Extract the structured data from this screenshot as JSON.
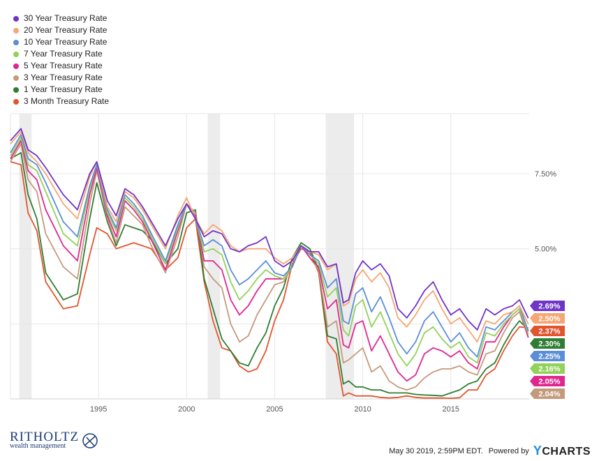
{
  "chart_data": {
    "type": "line",
    "title": "",
    "xlabel": "",
    "ylabel": "",
    "x_ticks": [
      "1995",
      "2000",
      "2005",
      "2010",
      "2015"
    ],
    "y_ticks": [
      "5.00%",
      "7.50%"
    ],
    "xlim": [
      1990.0,
      2019.45
    ],
    "ylim": [
      0.0,
      9.5
    ],
    "recession_bands": [
      [
        1990.5,
        1991.2
      ],
      [
        2001.2,
        2001.9
      ],
      [
        2007.9,
        2009.5
      ]
    ],
    "legend_position": "top-left",
    "series": [
      {
        "name": "30 Year Treasury Rate",
        "color": "#6f34c8",
        "last_label": "2.69%",
        "x": [
          1990,
          1990.6,
          1991,
          1991.5,
          1992,
          1993,
          1993.8,
          1994.5,
          1994.9,
          1995.5,
          1996,
          1996.5,
          1997,
          1997.5,
          1998,
          1998.8,
          1999.5,
          2000,
          2000.5,
          2001,
          2001.5,
          2002,
          2002.5,
          2003,
          2003.5,
          2004,
          2004.5,
          2005,
          2005.5,
          2006,
          2006.5,
          2007,
          2007.5,
          2008,
          2008.5,
          2008.9,
          2009.2,
          2009.6,
          2010,
          2010.5,
          2011,
          2011.5,
          2012,
          2012.5,
          2013,
          2013.5,
          2014,
          2014.5,
          2015,
          2015.5,
          2016,
          2016.5,
          2017,
          2017.5,
          2018,
          2018.5,
          2018.9,
          2019.4
        ],
        "y": [
          8.6,
          9.0,
          8.3,
          8.1,
          7.7,
          6.8,
          6.3,
          7.5,
          7.9,
          6.6,
          6.1,
          7.0,
          6.8,
          6.4,
          5.9,
          5.1,
          6.0,
          6.5,
          6.0,
          5.4,
          5.6,
          5.5,
          5.0,
          4.9,
          5.1,
          5.2,
          5.4,
          4.6,
          4.4,
          4.6,
          5.1,
          4.9,
          4.9,
          4.4,
          4.5,
          3.2,
          3.3,
          4.2,
          4.6,
          4.3,
          4.5,
          4.1,
          3.0,
          2.7,
          3.1,
          3.6,
          3.9,
          3.3,
          2.8,
          3.0,
          2.6,
          2.3,
          3.0,
          2.8,
          3.0,
          3.1,
          3.3,
          2.69
        ]
      },
      {
        "name": "20 Year Treasury Rate",
        "color": "#f5a672",
        "last_label": "2.50%",
        "x": [
          1990,
          1990.6,
          1991,
          1991.5,
          1992,
          1993,
          1993.8,
          1994.5,
          1994.9,
          1995.5,
          1996,
          1996.5,
          1997,
          1997.5,
          1998,
          1998.8,
          1999.5,
          2000,
          2000.5,
          2001,
          2001.5,
          2002,
          2002.5,
          2003,
          2003.5,
          2004,
          2004.5,
          2005,
          2005.5,
          2006,
          2006.5,
          2007,
          2007.5,
          2008,
          2008.5,
          2008.9,
          2009.2,
          2009.6,
          2010,
          2010.5,
          2011,
          2011.5,
          2012,
          2012.5,
          2013,
          2013.5,
          2014,
          2014.5,
          2015,
          2015.5,
          2016,
          2016.5,
          2017,
          2017.5,
          2018,
          2018.5,
          2018.9,
          2019.4
        ],
        "y": [
          8.5,
          8.9,
          8.2,
          7.9,
          7.5,
          6.5,
          6.0,
          7.4,
          7.9,
          6.4,
          5.9,
          6.9,
          6.7,
          6.3,
          5.8,
          5.0,
          6.1,
          6.7,
          6.0,
          5.5,
          5.8,
          5.6,
          5.1,
          4.9,
          5.0,
          5.0,
          5.0,
          4.7,
          4.5,
          4.7,
          5.1,
          4.9,
          4.8,
          4.3,
          4.5,
          3.1,
          3.2,
          4.0,
          4.3,
          3.9,
          4.2,
          3.7,
          2.7,
          2.4,
          2.8,
          3.3,
          3.6,
          3.0,
          2.5,
          2.7,
          2.3,
          1.9,
          2.6,
          2.5,
          2.8,
          2.9,
          3.1,
          2.5
        ]
      },
      {
        "name": "10 Year Treasury Rate",
        "color": "#5b8ed6",
        "last_label": "2.25%",
        "x": [
          1990,
          1990.6,
          1991,
          1991.5,
          1992,
          1993,
          1993.8,
          1994.5,
          1994.9,
          1995.5,
          1996,
          1996.5,
          1997,
          1997.5,
          1998,
          1998.8,
          1999.5,
          2000,
          2000.5,
          2001,
          2001.5,
          2002,
          2002.5,
          2003,
          2003.5,
          2004,
          2004.5,
          2005,
          2005.5,
          2006,
          2006.5,
          2007,
          2007.5,
          2008,
          2008.5,
          2008.9,
          2009.2,
          2009.6,
          2010,
          2010.5,
          2011,
          2011.5,
          2012,
          2012.5,
          2013,
          2013.5,
          2014,
          2014.5,
          2015,
          2015.5,
          2016,
          2016.5,
          2017,
          2017.5,
          2018,
          2018.5,
          2018.9,
          2019.4
        ],
        "y": [
          8.2,
          8.8,
          8.0,
          7.8,
          7.2,
          5.9,
          5.4,
          7.1,
          7.8,
          6.3,
          5.7,
          6.8,
          6.5,
          6.1,
          5.5,
          4.6,
          5.8,
          6.5,
          6.0,
          5.1,
          5.3,
          5.1,
          4.3,
          3.8,
          4.0,
          4.3,
          4.6,
          4.2,
          4.1,
          4.4,
          5.1,
          4.8,
          4.6,
          3.7,
          4.0,
          2.6,
          2.5,
          3.5,
          3.7,
          2.9,
          3.4,
          2.7,
          1.9,
          1.5,
          1.9,
          2.6,
          2.9,
          2.4,
          1.9,
          2.2,
          1.7,
          1.4,
          2.4,
          2.3,
          2.6,
          2.9,
          3.1,
          2.25
        ]
      },
      {
        "name": "7 Year Treasury Rate",
        "color": "#92d15a",
        "last_label": "2.16%",
        "x": [
          1990,
          1990.6,
          1991,
          1991.5,
          1992,
          1993,
          1993.8,
          1994.5,
          1994.9,
          1995.5,
          1996,
          1996.5,
          1997,
          1997.5,
          1998,
          1998.8,
          1999.5,
          2000,
          2000.5,
          2001,
          2001.5,
          2002,
          2002.5,
          2003,
          2003.5,
          2004,
          2004.5,
          2005,
          2005.5,
          2006,
          2006.5,
          2007,
          2007.5,
          2008,
          2008.5,
          2008.9,
          2009.2,
          2009.6,
          2010,
          2010.5,
          2011,
          2011.5,
          2012,
          2012.5,
          2013,
          2013.5,
          2014,
          2014.5,
          2015,
          2015.5,
          2016,
          2016.5,
          2017,
          2017.5,
          2018,
          2018.5,
          2018.9,
          2019.4
        ],
        "y": [
          8.1,
          8.7,
          7.8,
          7.6,
          6.9,
          5.5,
          5.1,
          7.0,
          7.8,
          6.2,
          5.6,
          6.7,
          6.4,
          6.0,
          5.4,
          4.5,
          5.7,
          6.5,
          6.0,
          4.9,
          5.0,
          4.8,
          3.9,
          3.3,
          3.6,
          4.0,
          4.3,
          4.1,
          4.0,
          4.4,
          5.1,
          4.8,
          4.5,
          3.4,
          3.7,
          2.3,
          2.1,
          3.1,
          3.3,
          2.4,
          2.9,
          2.2,
          1.5,
          1.1,
          1.5,
          2.2,
          2.4,
          2.0,
          1.7,
          1.9,
          1.4,
          1.2,
          2.2,
          2.1,
          2.5,
          2.8,
          3.0,
          2.16
        ]
      },
      {
        "name": "5 Year Treasury Rate",
        "color": "#e0268f",
        "last_label": "2.05%",
        "x": [
          1990,
          1990.6,
          1991,
          1991.5,
          1992,
          1993,
          1993.8,
          1994.5,
          1994.9,
          1995.5,
          1996,
          1996.5,
          1997,
          1997.5,
          1998,
          1998.8,
          1999.5,
          2000,
          2000.5,
          2001,
          2001.5,
          2002,
          2002.5,
          2003,
          2003.5,
          2004,
          2004.5,
          2005,
          2005.5,
          2006,
          2006.5,
          2007,
          2007.5,
          2008,
          2008.5,
          2008.9,
          2009.2,
          2009.6,
          2010,
          2010.5,
          2011,
          2011.5,
          2012,
          2012.5,
          2013,
          2013.5,
          2014,
          2014.5,
          2015,
          2015.5,
          2016,
          2016.5,
          2017,
          2017.5,
          2018,
          2018.5,
          2018.9,
          2019.4
        ],
        "y": [
          8.0,
          8.6,
          7.6,
          7.3,
          6.3,
          5.1,
          4.6,
          6.8,
          7.7,
          6.1,
          5.4,
          6.6,
          6.3,
          5.9,
          5.3,
          4.3,
          5.6,
          6.5,
          6.1,
          4.6,
          4.6,
          4.3,
          3.3,
          2.8,
          3.1,
          3.6,
          4.0,
          4.0,
          4.0,
          4.4,
          5.1,
          4.7,
          4.4,
          3.0,
          3.3,
          1.8,
          1.7,
          2.5,
          2.6,
          1.6,
          2.1,
          1.5,
          0.9,
          0.6,
          0.8,
          1.5,
          1.7,
          1.6,
          1.4,
          1.6,
          1.2,
          1.0,
          1.9,
          1.9,
          2.4,
          2.8,
          3.0,
          2.05
        ]
      },
      {
        "name": "3 Year Treasury Rate",
        "color": "#c49a7c",
        "last_label": "2.04%",
        "x": [
          1990,
          1990.6,
          1991,
          1991.5,
          1992,
          1993,
          1993.8,
          1994.5,
          1994.9,
          1995.5,
          1996,
          1996.5,
          1997,
          1997.5,
          1998,
          1998.8,
          1999.5,
          2000,
          2000.5,
          2001,
          2001.5,
          2002,
          2002.5,
          2003,
          2003.5,
          2004,
          2004.5,
          2005,
          2005.5,
          2006,
          2006.5,
          2007,
          2007.5,
          2008,
          2008.5,
          2008.9,
          2009.2,
          2009.6,
          2010,
          2010.5,
          2011,
          2011.5,
          2012,
          2012.5,
          2013,
          2013.5,
          2014,
          2014.5,
          2015,
          2015.5,
          2016,
          2016.5,
          2017,
          2017.5,
          2018,
          2018.5,
          2018.9,
          2019.4
        ],
        "y": [
          7.9,
          8.5,
          7.3,
          6.9,
          5.5,
          4.4,
          4.0,
          6.5,
          7.6,
          6.0,
          5.2,
          6.4,
          6.1,
          5.8,
          5.1,
          4.2,
          5.4,
          6.5,
          6.2,
          4.4,
          4.0,
          3.7,
          2.5,
          1.9,
          2.1,
          2.8,
          3.3,
          3.8,
          3.9,
          4.4,
          5.1,
          4.7,
          4.3,
          2.4,
          2.6,
          1.2,
          1.3,
          1.5,
          1.7,
          0.9,
          1.1,
          0.6,
          0.4,
          0.3,
          0.4,
          0.7,
          0.9,
          1.0,
          1.0,
          1.1,
          0.9,
          0.8,
          1.5,
          1.6,
          2.2,
          2.7,
          2.9,
          2.04
        ]
      },
      {
        "name": "1 Year Treasury Rate",
        "color": "#2e7d32",
        "last_label": "2.30%",
        "x": [
          1990,
          1990.6,
          1991,
          1991.5,
          1992,
          1993,
          1993.8,
          1994.5,
          1994.9,
          1995.5,
          1996,
          1996.5,
          1997,
          1997.5,
          1998,
          1998.8,
          1999.5,
          2000,
          2000.5,
          2001,
          2001.5,
          2002,
          2002.5,
          2003,
          2003.5,
          2004,
          2004.5,
          2005,
          2005.5,
          2006,
          2006.5,
          2007,
          2007.5,
          2008,
          2008.5,
          2008.9,
          2009.2,
          2009.6,
          2010,
          2010.5,
          2011,
          2011.5,
          2012,
          2012.5,
          2013,
          2013.5,
          2014,
          2014.5,
          2015,
          2015.5,
          2016,
          2016.5,
          2017,
          2017.5,
          2018,
          2018.5,
          2018.9,
          2019.4
        ],
        "y": [
          8.0,
          8.2,
          6.8,
          6.0,
          4.2,
          3.3,
          3.5,
          6.0,
          7.2,
          5.9,
          5.1,
          5.8,
          5.7,
          5.6,
          5.3,
          4.5,
          5.0,
          6.2,
          6.3,
          4.0,
          3.0,
          2.0,
          1.6,
          1.2,
          1.1,
          1.7,
          2.2,
          3.1,
          3.7,
          4.7,
          5.2,
          5.0,
          4.3,
          2.1,
          2.0,
          0.5,
          0.6,
          0.4,
          0.4,
          0.3,
          0.3,
          0.2,
          0.2,
          0.2,
          0.15,
          0.13,
          0.12,
          0.1,
          0.2,
          0.3,
          0.5,
          0.6,
          1.0,
          1.2,
          1.8,
          2.3,
          2.6,
          2.3
        ]
      },
      {
        "name": "3 Month Treasury Rate",
        "color": "#e1552e",
        "last_label": "2.37%",
        "x": [
          1990,
          1990.6,
          1991,
          1991.5,
          1992,
          1993,
          1993.8,
          1994.5,
          1994.9,
          1995.5,
          1996,
          1996.5,
          1997,
          1997.5,
          1998,
          1998.8,
          1999.5,
          2000,
          2000.5,
          2001,
          2001.5,
          2002,
          2002.5,
          2003,
          2003.5,
          2004,
          2004.5,
          2005,
          2005.5,
          2006,
          2006.5,
          2007,
          2007.5,
          2008,
          2008.5,
          2008.9,
          2009.2,
          2009.6,
          2010,
          2010.5,
          2011,
          2011.5,
          2012,
          2012.5,
          2013,
          2013.5,
          2014,
          2014.5,
          2015,
          2015.5,
          2016,
          2016.5,
          2017,
          2017.5,
          2018,
          2018.5,
          2018.9,
          2019.4
        ],
        "y": [
          7.9,
          7.8,
          6.2,
          5.6,
          3.9,
          3.0,
          3.1,
          4.8,
          5.7,
          5.5,
          5.0,
          5.1,
          5.2,
          5.1,
          5.0,
          4.3,
          4.7,
          5.7,
          6.0,
          3.9,
          2.6,
          1.7,
          1.6,
          1.1,
          0.9,
          1.0,
          1.6,
          2.6,
          3.3,
          4.5,
          5.0,
          4.9,
          4.2,
          1.9,
          1.5,
          0.1,
          0.2,
          0.1,
          0.1,
          0.1,
          0.05,
          0.03,
          0.05,
          0.1,
          0.05,
          0.03,
          0.03,
          0.03,
          0.02,
          0.04,
          0.3,
          0.3,
          0.8,
          1.0,
          1.6,
          2.1,
          2.4,
          2.37
        ]
      }
    ]
  },
  "branding": {
    "logo_main": "RITHOLTZ",
    "logo_sub": "wealth management",
    "timestamp": "May 30 2019, 2:59PM EDT.",
    "powered_by": "Powered by",
    "ycharts_y": "Y",
    "ycharts_rest": "CHARTS"
  }
}
